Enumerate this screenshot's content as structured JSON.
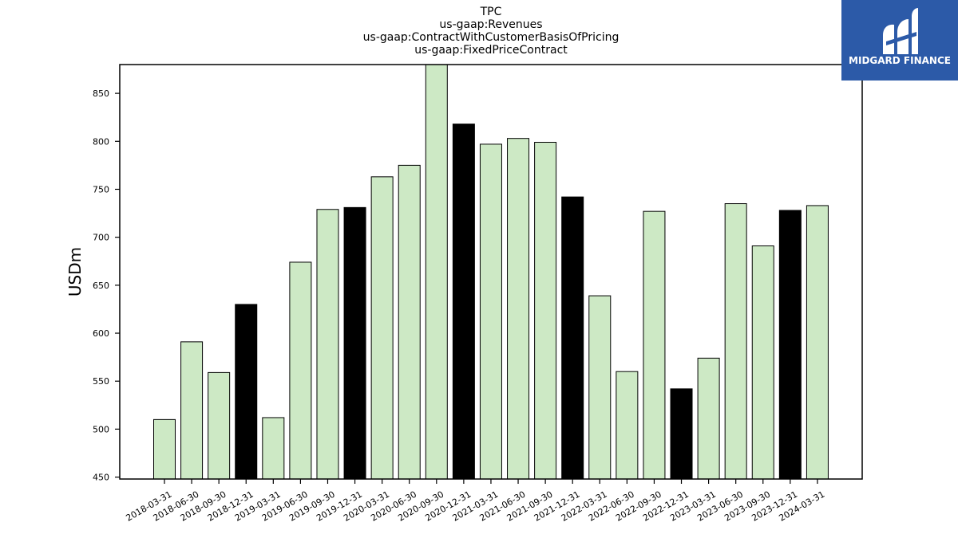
{
  "title_lines": [
    "TPC",
    "us-gaap:Revenues",
    "us-gaap:ContractWithCustomerBasisOfPricing",
    "us-gaap:FixedPriceContract"
  ],
  "logo": {
    "text": "MIDGARD FINANCE",
    "background": "#2c5aa8"
  },
  "colors": {
    "regular_bar": "#cde9c5",
    "q4_bar": "#000000",
    "edge": "#000000"
  },
  "chart_data": {
    "type": "bar",
    "ylabel": "USDm",
    "xlabel": "",
    "ylim": [
      448,
      880
    ],
    "yticks": [
      450,
      500,
      550,
      600,
      650,
      700,
      750,
      800,
      850
    ],
    "categories": [
      "2018-03-31",
      "2018-06-30",
      "2018-09-30",
      "2018-12-31",
      "2019-03-31",
      "2019-06-30",
      "2019-09-30",
      "2019-12-31",
      "2020-03-31",
      "2020-06-30",
      "2020-09-30",
      "2020-12-31",
      "2021-03-31",
      "2021-06-30",
      "2021-09-30",
      "2021-12-31",
      "2022-03-31",
      "2022-06-30",
      "2022-09-30",
      "2022-12-31",
      "2023-03-31",
      "2023-06-30",
      "2023-09-30",
      "2023-12-31",
      "2024-03-31"
    ],
    "values": [
      510,
      591,
      559,
      630,
      512,
      674,
      729,
      731,
      763,
      775,
      880,
      818,
      797,
      803,
      799,
      742,
      639,
      560,
      727,
      542,
      574,
      735,
      691,
      728,
      733
    ],
    "highlight": [
      false,
      false,
      false,
      true,
      false,
      false,
      false,
      true,
      false,
      false,
      false,
      true,
      false,
      false,
      false,
      true,
      false,
      false,
      false,
      true,
      false,
      false,
      false,
      true,
      false
    ],
    "grid": false,
    "legend": "none"
  }
}
